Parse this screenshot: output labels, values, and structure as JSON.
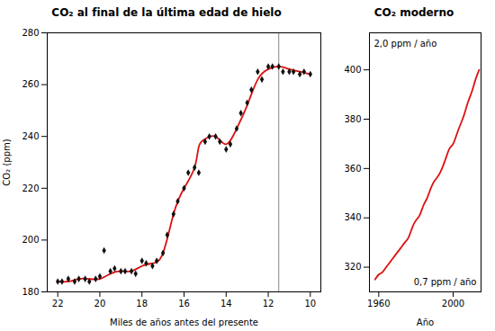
{
  "chart_data": [
    {
      "type": "line",
      "title": "CO₂ al final de la última edad de hielo",
      "xlabel": "Miles de años antes del presente",
      "ylabel": "CO₂ (ppm)",
      "xlim": [
        22.5,
        9.5
      ],
      "ylim": [
        180,
        280
      ],
      "xticks": [
        22,
        20,
        18,
        16,
        14,
        12,
        10
      ],
      "yticks": [
        180,
        200,
        220,
        240,
        260,
        280
      ],
      "reference_lines": [
        {
          "x": 11.5,
          "color": "#666666"
        }
      ],
      "series": [
        {
          "type": "line",
          "line_style": "smooth",
          "color": "#dd1111",
          "x": [
            10.0,
            10.5,
            11.0,
            11.5,
            12.0,
            12.5,
            13.0,
            13.5,
            14.0,
            14.5,
            15.0,
            15.3,
            15.5,
            16.0,
            16.5,
            17.0,
            17.5,
            18.0,
            18.5,
            19.0,
            19.5,
            20.0,
            20.5,
            21.0,
            21.5,
            22.0
          ],
          "values": [
            264,
            265,
            266,
            267,
            266,
            262,
            252,
            243,
            237,
            240,
            239,
            236,
            228,
            220,
            210,
            195,
            191,
            190,
            188,
            188,
            187,
            185,
            185,
            185,
            184,
            184
          ]
        },
        {
          "type": "scatter",
          "marker": "diamond",
          "color": "#111111",
          "x": [
            22.0,
            21.8,
            21.5,
            21.2,
            21.0,
            20.7,
            20.5,
            20.2,
            20.0,
            19.8,
            19.5,
            19.3,
            19.0,
            18.8,
            18.5,
            18.3,
            18.0,
            17.8,
            17.5,
            17.3,
            17.0,
            16.8,
            16.5,
            16.3,
            16.0,
            15.8,
            15.5,
            15.3,
            15.0,
            14.8,
            14.5,
            14.3,
            14.0,
            13.8,
            13.5,
            13.3,
            13.0,
            12.8,
            12.5,
            12.3,
            12.0,
            11.8,
            11.5,
            11.3,
            11.0,
            10.8,
            10.5,
            10.3,
            10.0
          ],
          "values": [
            184,
            184,
            185,
            184,
            185,
            185,
            184,
            185,
            186,
            196,
            188,
            189,
            188,
            188,
            188,
            187,
            192,
            191,
            190,
            192,
            195,
            202,
            210,
            215,
            220,
            226,
            228,
            226,
            238,
            240,
            240,
            238,
            235,
            237,
            243,
            249,
            253,
            258,
            265,
            262,
            267,
            267,
            267,
            265,
            265,
            265,
            264,
            265,
            264
          ]
        }
      ]
    },
    {
      "type": "line",
      "title": "CO₂ moderno",
      "xlabel": "Año",
      "xlim": [
        1955,
        2015
      ],
      "ylim": [
        310,
        415
      ],
      "xticks": [
        1960,
        2000
      ],
      "yticks": [
        320,
        340,
        360,
        380,
        400
      ],
      "annotations": [
        "2,0 ppm / año",
        "0,7 ppm / año"
      ],
      "series": [
        {
          "type": "line",
          "line_style": "smooth",
          "color": "#dd1111",
          "x": [
            1958,
            1960,
            1962,
            1964,
            1966,
            1968,
            1970,
            1972,
            1974,
            1976,
            1978,
            1980,
            1982,
            1984,
            1986,
            1988,
            1990,
            1992,
            1994,
            1996,
            1998,
            2000,
            2002,
            2004,
            2006,
            2008,
            2010,
            2012,
            2014
          ],
          "values": [
            315,
            317,
            318,
            320,
            322,
            324,
            326,
            328,
            330,
            332,
            336,
            339,
            341,
            345,
            348,
            352,
            355,
            357,
            360,
            364,
            368,
            370,
            374,
            378,
            382,
            387,
            391,
            396,
            400
          ]
        }
      ]
    }
  ]
}
